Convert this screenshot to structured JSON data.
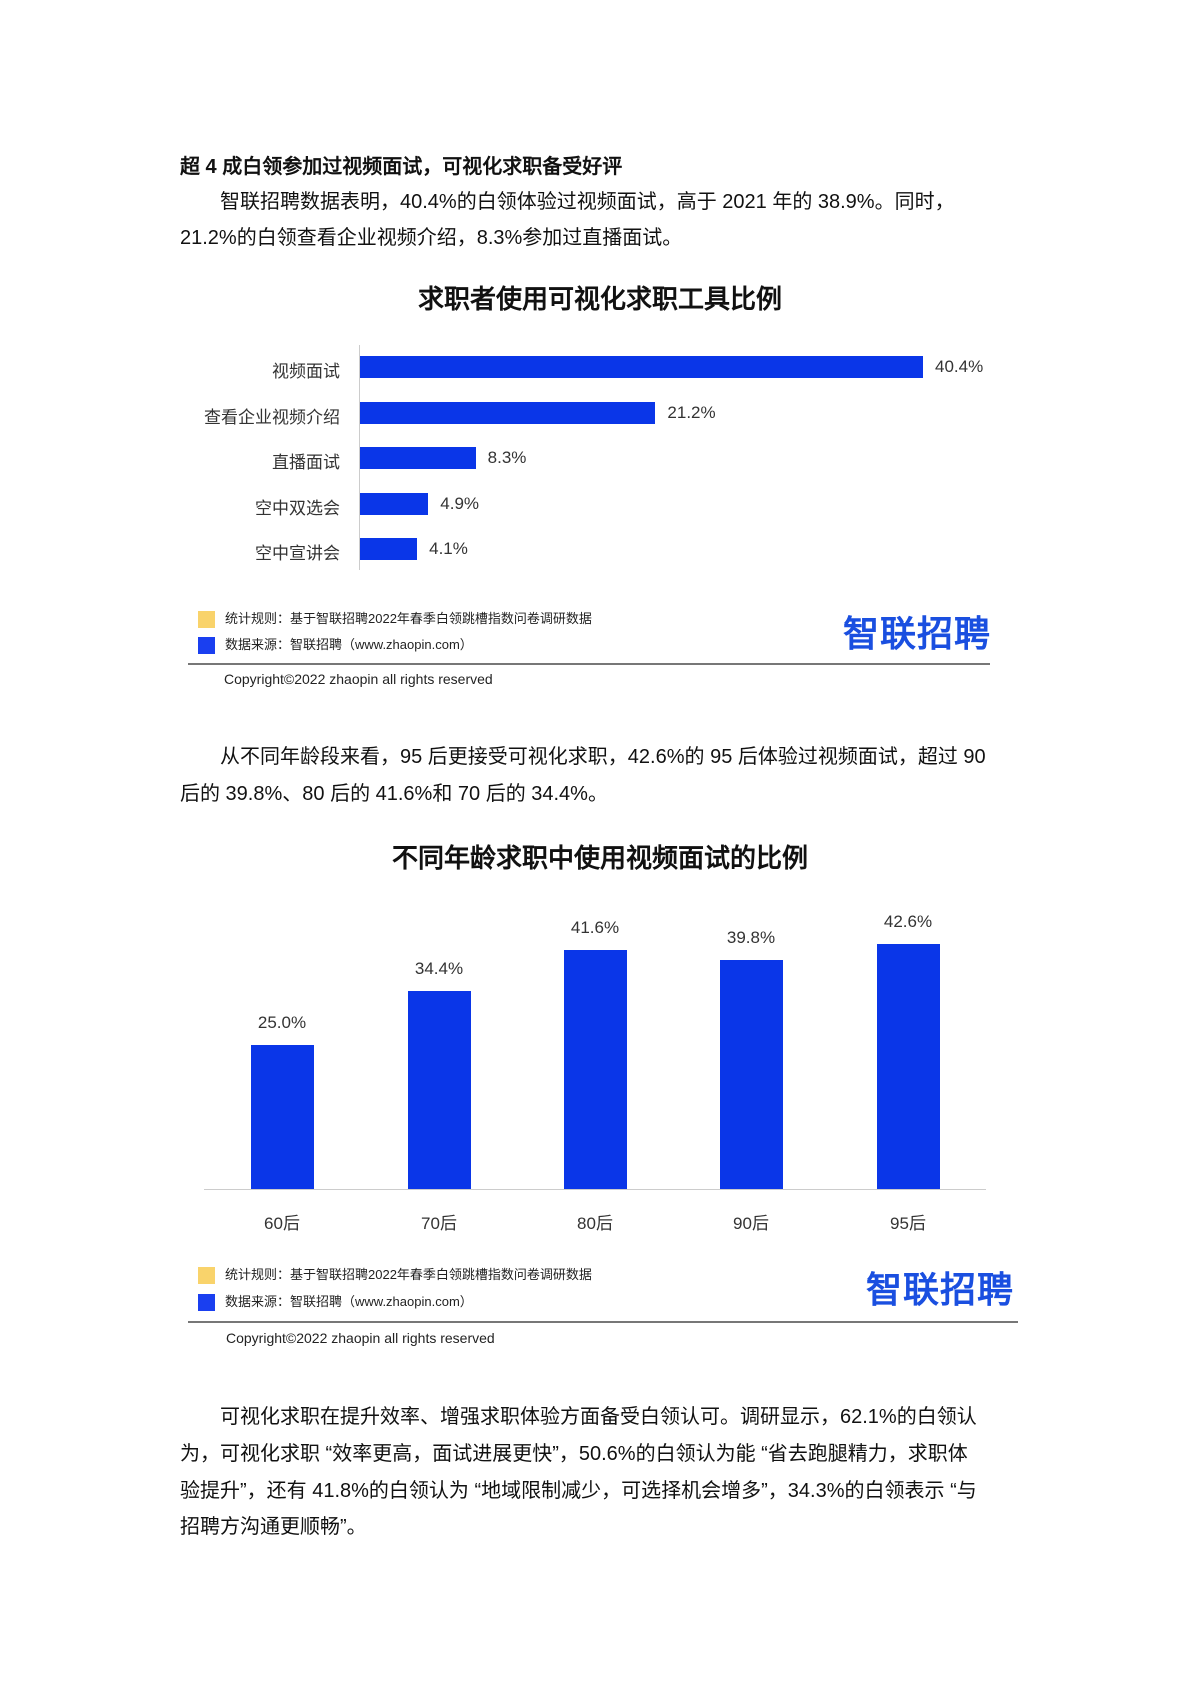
{
  "heading": "超 4 成白领参加过视频面试，可视化求职备受好评",
  "para1": [
    "　　智联招聘数据表明，40.4%的白领体验过视频面试，高于 2021 年的 38.9%。同时，",
    "21.2%的白领查看企业视频介绍，8.3%参加过直播面试。"
  ],
  "para2": [
    "　　从不同年龄段来看，95 后更接受可视化求职，42.6%的 95 后体验过视频面试，超过 90",
    "后的 39.8%、80 后的 41.6%和 70 后的 34.4%。"
  ],
  "para3": [
    "　　可视化求职在提升效率、增强求职体验方面备受白领认可。调研显示，62.1%的白领认",
    "为，可视化求职 “效率更高，面试进展更快”，50.6%的白领认为能 “省去跑腿精力，求职体",
    "验提升”，还有 41.8%的白领认为 “地域限制减少，可选择机会增多”，34.3%的白领表示 “与",
    "招聘方沟通更顺畅”。"
  ],
  "footer": {
    "rule_label": "统计规则：基于智联招聘2022年春季白领跳槽指数问卷调研数据",
    "source_label": "数据来源：智联招聘（www.zhaopin.com）",
    "logo": "智联招聘",
    "copyright": "Copyright©2022 zhaopin all rights reserved",
    "colors": {
      "rule": "#f9d36b",
      "source": "#1a3ff0"
    }
  },
  "chart_data": [
    {
      "type": "bar",
      "orientation": "horizontal",
      "title": "求职者使用可视化求职工具比例",
      "categories": [
        "视频面试",
        "查看企业视频介绍",
        "直播面试",
        "空中双选会",
        "空中宣讲会"
      ],
      "values": [
        40.4,
        21.2,
        8.3,
        4.9,
        4.1
      ],
      "labels": [
        "40.4%",
        "21.2%",
        "8.3%",
        "4.9%",
        "4.1%"
      ],
      "unit": "%",
      "color": "#0a36e8"
    },
    {
      "type": "bar",
      "orientation": "vertical",
      "title": "不同年龄求职中使用视频面试的比例",
      "categories": [
        "60后",
        "70后",
        "80后",
        "90后",
        "95后"
      ],
      "values": [
        25.0,
        34.4,
        41.6,
        39.8,
        42.6
      ],
      "labels": [
        "25.0%",
        "34.4%",
        "41.6%",
        "39.8%",
        "42.6%"
      ],
      "unit": "%",
      "color": "#0a36e8"
    }
  ]
}
